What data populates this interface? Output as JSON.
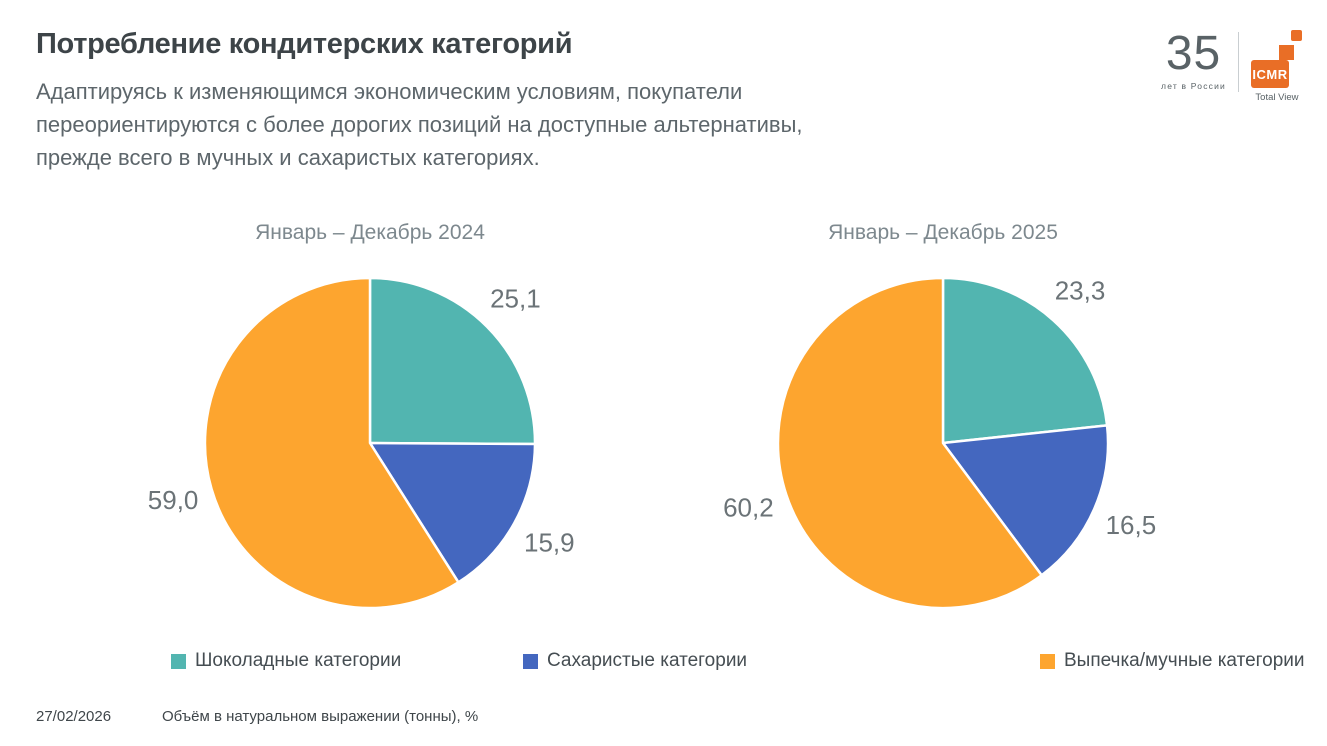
{
  "header": {
    "title": "Потребление кондитерских категорий",
    "subtitle_lines": [
      "Адаптируясь к изменяющимся экономическим условиям, покупатели",
      "переориентируются с более дорогих позиций на доступные альтернативы,",
      "прежде всего в мучных и сахаристых категориях."
    ]
  },
  "logo": {
    "years": "35",
    "years_caption": "лет в России",
    "brand": "ICMR",
    "brand_caption": "Total View",
    "brand_color": "#E96E26"
  },
  "chart_data": [
    {
      "type": "pie",
      "title": "Январь – Декабрь 2024",
      "categories": [
        "Шоколадные категории",
        "Сахаристые категории",
        "Выпечка/мучные категории"
      ],
      "values": [
        25.1,
        15.9,
        59.0
      ],
      "value_labels": [
        "25,1",
        "15,9",
        "59,0"
      ],
      "colors": [
        "#52B5B0",
        "#4467BF",
        "#FDA52F"
      ],
      "start_angle_deg": -90,
      "direction": "clockwise",
      "legend_position": "bottom-shared"
    },
    {
      "type": "pie",
      "title": "Январь – Декабрь 2025",
      "categories": [
        "Шоколадные категории",
        "Сахаристые категории",
        "Выпечка/мучные категории"
      ],
      "values": [
        23.3,
        16.5,
        60.2
      ],
      "value_labels": [
        "23,3",
        "16,5",
        "60,2"
      ],
      "colors": [
        "#52B5B0",
        "#4467BF",
        "#FDA52F"
      ],
      "start_angle_deg": -90,
      "direction": "clockwise",
      "legend_position": "bottom-shared"
    }
  ],
  "legend": {
    "items": [
      {
        "label": "Шоколадные категории",
        "color": "#52B5B0"
      },
      {
        "label": "Сахаристые категории",
        "color": "#4467BF"
      },
      {
        "label": "Выпечка/мучные категории",
        "color": "#FDA52F"
      }
    ]
  },
  "footer": {
    "date": "27/02/2026",
    "note": "Объём в натуральном выражении (тонны), %"
  },
  "style": {
    "value_label_color": "#6b7377",
    "slice_border_color": "#ffffff"
  }
}
